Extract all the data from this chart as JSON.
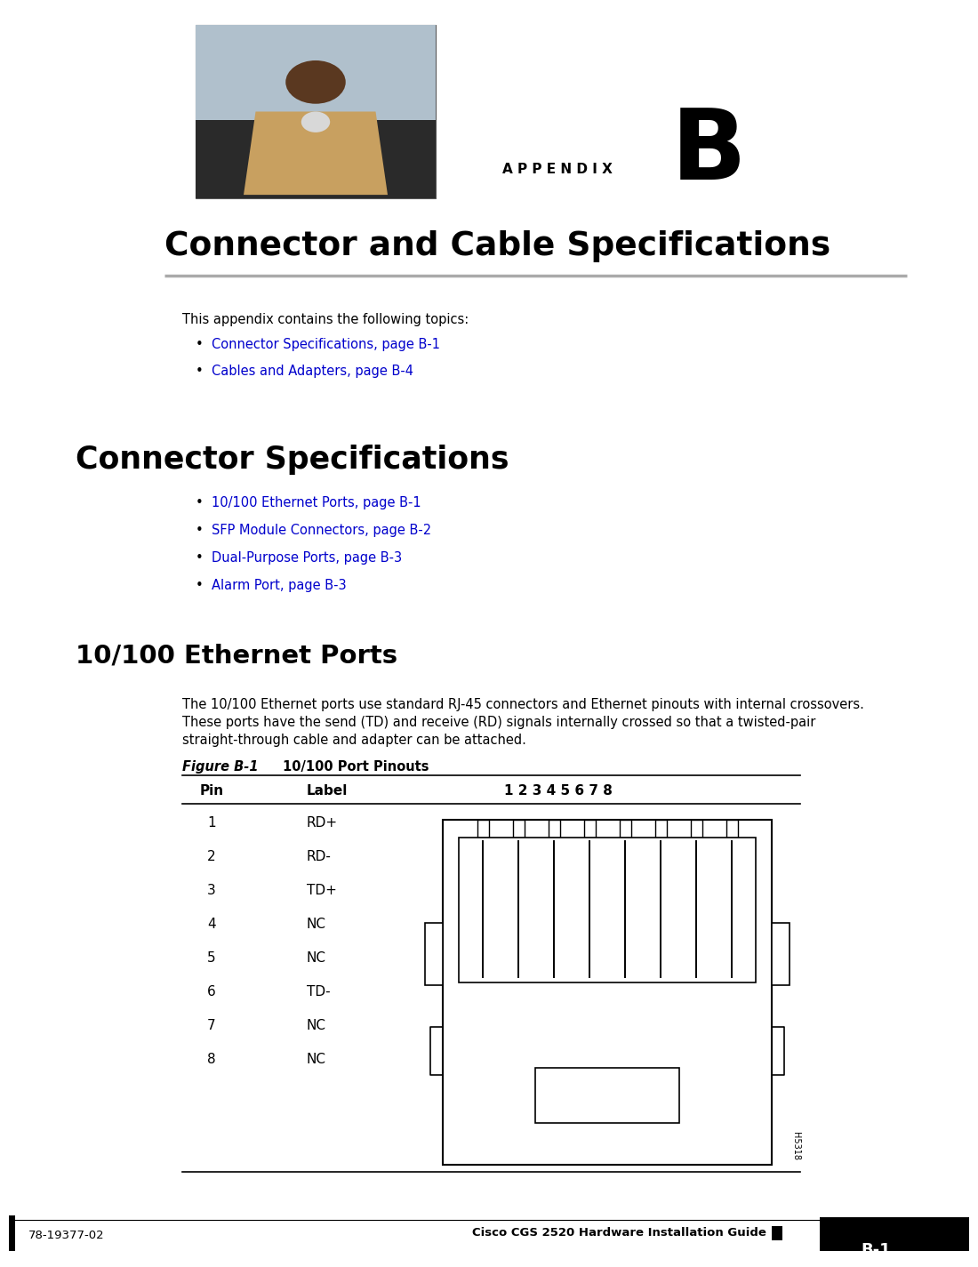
{
  "bg_color": "#ffffff",
  "appendix_label": "A P P E N D I X",
  "appendix_letter": "B",
  "title": "Connector and Cable Specifications",
  "intro_text": "This appendix contains the following topics:",
  "bullet_links_intro": [
    "Connector Specifications, page B-1",
    "Cables and Adapters, page B-4"
  ],
  "section1_title": "Connector Specifications",
  "bullet_links_section1": [
    "10/100 Ethernet Ports, page B-1",
    "SFP Module Connectors, page B-2",
    "Dual-Purpose Ports, page B-3",
    "Alarm Port, page B-3"
  ],
  "section2_title": "10/100 Ethernet Ports",
  "body_text": [
    "The 10/100 Ethernet ports use standard RJ-45 connectors and Ethernet pinouts with internal crossovers.",
    "These ports have the send (TD) and receive (RD) signals internally crossed so that a twisted-pair",
    "straight-through cable and adapter can be attached."
  ],
  "figure_label": "Figure B-1",
  "figure_title": "10/100 Port Pinouts",
  "table_header_pin": "Pin",
  "table_header_label": "Label",
  "table_header_pins": "1 2 3 4 5 6 7 8",
  "table_rows": [
    [
      "1",
      "RD+"
    ],
    [
      "2",
      "RD-"
    ],
    [
      "3",
      "TD+"
    ],
    [
      "4",
      "NC"
    ],
    [
      "5",
      "NC"
    ],
    [
      "6",
      "TD-"
    ],
    [
      "7",
      "NC"
    ],
    [
      "8",
      "NC"
    ]
  ],
  "figure_note": "H5318",
  "footer_left": "78-19377-02",
  "footer_right": "B-1",
  "footer_center": "Cisco CGS 2520 Hardware Installation Guide",
  "link_color": "#0000cc",
  "text_color": "#000000",
  "gray_line_color": "#aaaaaa"
}
